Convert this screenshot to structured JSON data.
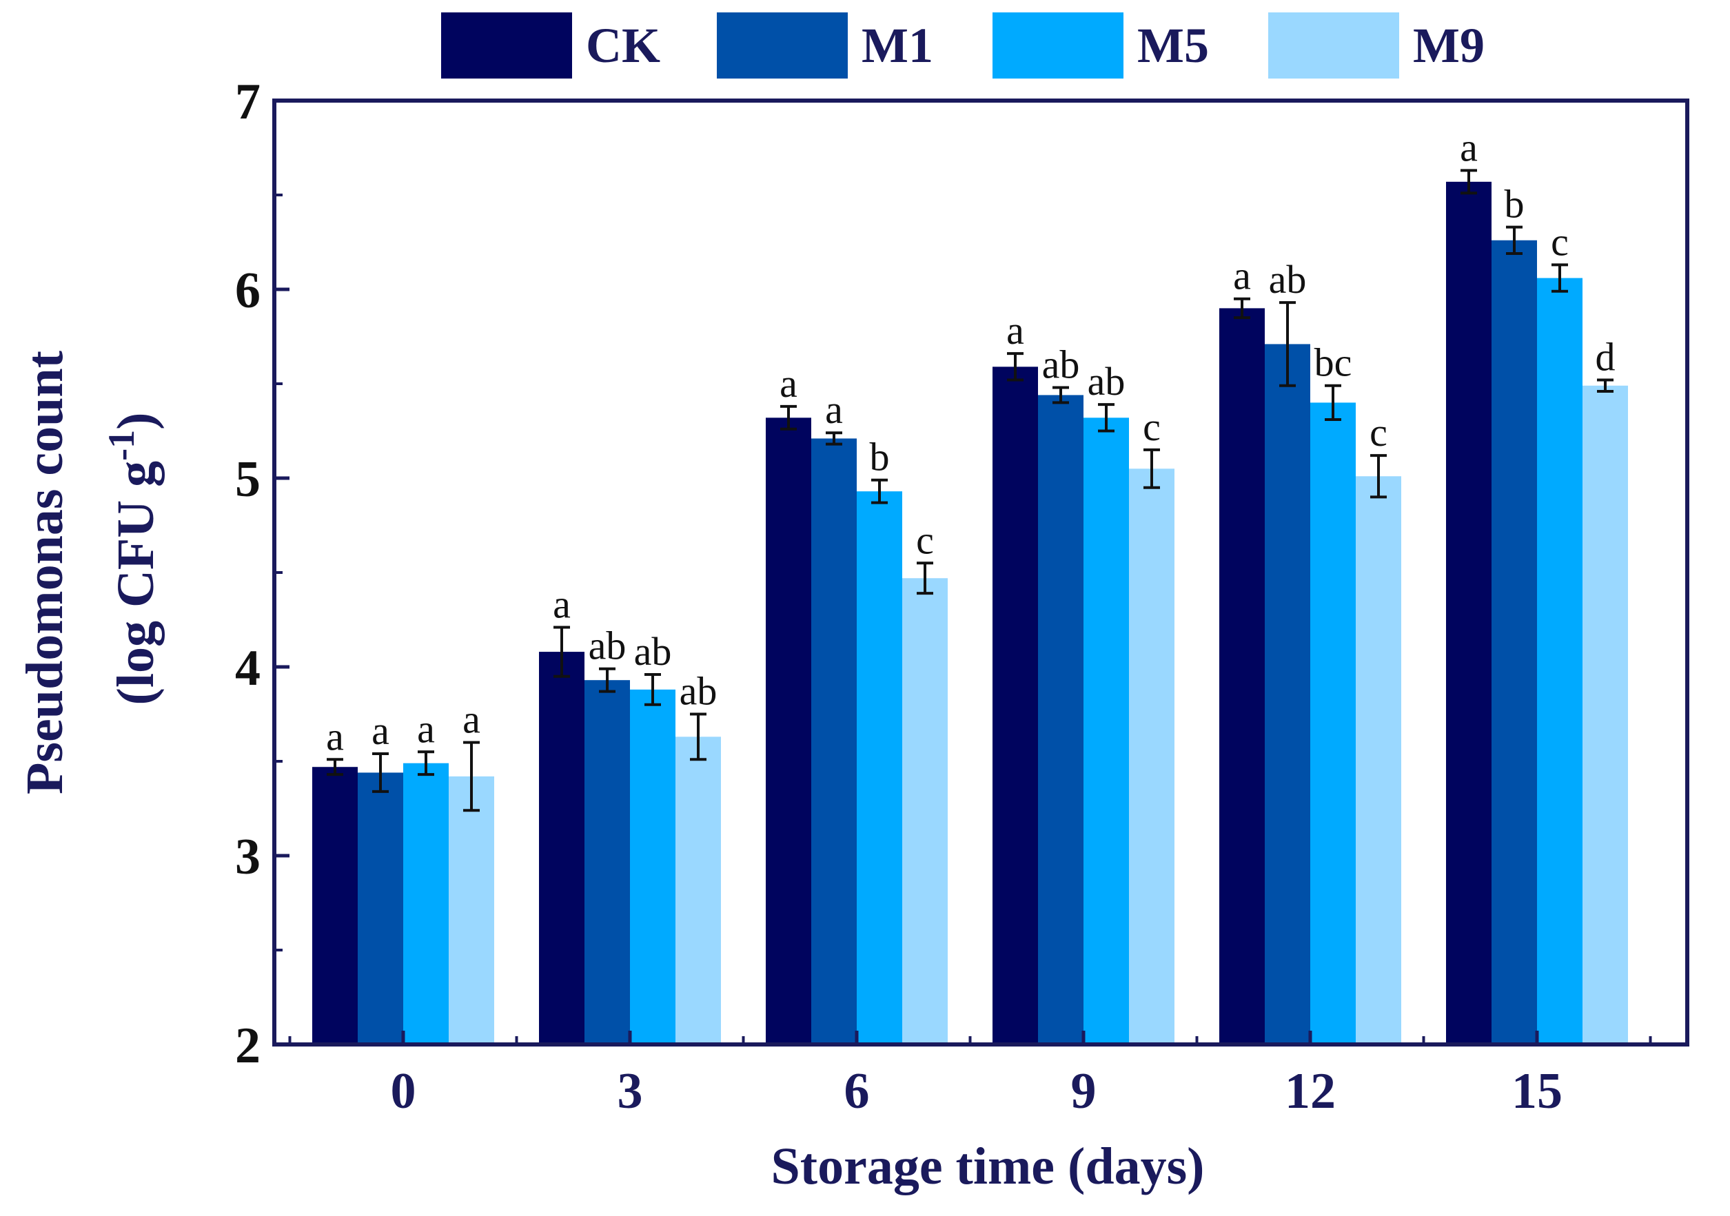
{
  "chart_data": {
    "type": "bar",
    "title": "",
    "xlabel": "Storage time (days)",
    "ylabel_line1": "Pseudomonas count",
    "ylabel_line2_text": "(log CFU g",
    "ylabel_line2_sup": "-1",
    "ylabel_line2_close": ")",
    "ylim": [
      2,
      7
    ],
    "yticks": [
      2,
      3,
      4,
      5,
      6,
      7
    ],
    "categories": [
      "0",
      "3",
      "6",
      "9",
      "12",
      "15"
    ],
    "series": [
      {
        "name": "CK",
        "color": "#00045e",
        "values": [
          3.47,
          4.08,
          5.32,
          5.59,
          5.9,
          6.57
        ],
        "errors": [
          0.04,
          0.13,
          0.06,
          0.07,
          0.05,
          0.06
        ],
        "sig": [
          "a",
          "a",
          "a",
          "a",
          "a",
          "a"
        ]
      },
      {
        "name": "M1",
        "color": "#0050a8",
        "values": [
          3.44,
          3.93,
          5.21,
          5.44,
          5.71,
          6.26
        ],
        "errors": [
          0.1,
          0.06,
          0.03,
          0.04,
          0.22,
          0.07
        ],
        "sig": [
          "a",
          "ab",
          "a",
          "ab",
          "ab",
          "b"
        ]
      },
      {
        "name": "M5",
        "color": "#00aaff",
        "values": [
          3.49,
          3.88,
          4.93,
          5.32,
          5.4,
          6.06
        ],
        "errors": [
          0.06,
          0.08,
          0.06,
          0.07,
          0.09,
          0.07
        ],
        "sig": [
          "a",
          "ab",
          "b",
          "ab",
          "bc",
          "c"
        ]
      },
      {
        "name": "M9",
        "color": "#9ad8ff",
        "values": [
          3.42,
          3.63,
          4.47,
          5.05,
          5.01,
          5.49
        ],
        "errors": [
          0.18,
          0.12,
          0.08,
          0.1,
          0.11,
          0.03
        ],
        "sig": [
          "a",
          "ab",
          "c",
          "c",
          "c",
          "d"
        ]
      }
    ],
    "legend_position": "top",
    "grid": false
  },
  "colors": {
    "axis": "#1a1a5c",
    "error_bar": "#111111"
  }
}
